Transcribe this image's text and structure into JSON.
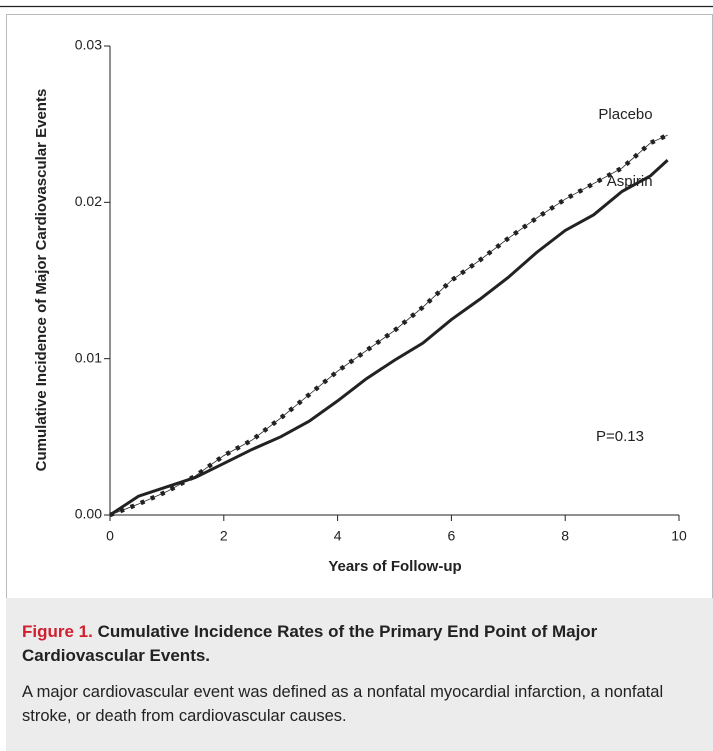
{
  "chart_data": {
    "type": "line",
    "y_label": "Cumulative Incidence of Major Cardiovascular Events",
    "x_label": "Years of Follow-up",
    "annotation": "P=0.13",
    "x": [
      0,
      0.5,
      1,
      1.5,
      2,
      2.5,
      3,
      3.5,
      4,
      4.5,
      5,
      5.5,
      6,
      6.5,
      7,
      7.5,
      8,
      8.5,
      9,
      9.5,
      9.8
    ],
    "series": [
      {
        "name": "Placebo",
        "color": "#222222",
        "style": "dotted",
        "values": [
          0,
          0.0007,
          0.0015,
          0.0025,
          0.0038,
          0.0048,
          0.0062,
          0.0077,
          0.0092,
          0.0105,
          0.0118,
          0.0133,
          0.015,
          0.0163,
          0.0177,
          0.019,
          0.0202,
          0.0212,
          0.0222,
          0.0238,
          0.0243
        ]
      },
      {
        "name": "Aspirin",
        "color": "#222222",
        "style": "solid",
        "values": [
          0,
          0.0012,
          0.0018,
          0.0024,
          0.0033,
          0.0042,
          0.005,
          0.006,
          0.0073,
          0.0087,
          0.0099,
          0.011,
          0.0125,
          0.0138,
          0.0152,
          0.0168,
          0.0182,
          0.0192,
          0.0207,
          0.0217,
          0.0227
        ]
      }
    ],
    "xlim": [
      0,
      10
    ],
    "xticks": [
      0,
      2,
      4,
      6,
      8,
      10
    ],
    "ylim": [
      0,
      0.03
    ],
    "yticks": [
      {
        "value": 0,
        "label": "0.00"
      },
      0.01,
      0.02,
      0.03
    ],
    "grid": false
  },
  "caption": {
    "label": "Figure 1.",
    "title": "Cumulative Incidence Rates of the Primary End Point of Major Cardiovascular Events.",
    "text": "A major cardiovascular event was defined as a nonfatal myocardial infarction, a nonfatal stroke, or death from cardiovascular causes."
  }
}
